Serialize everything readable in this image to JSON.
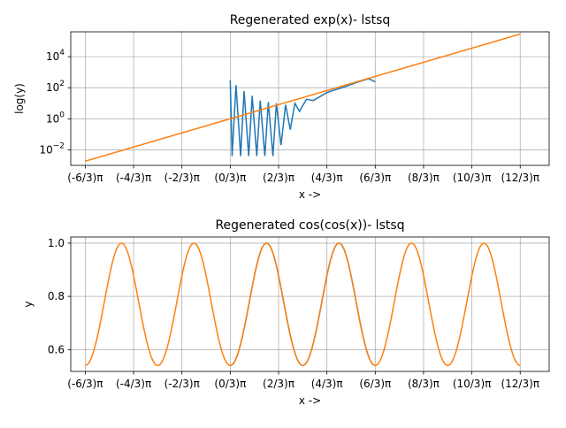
{
  "chart_data": [
    {
      "type": "line",
      "title": "Regenerated exp(x)- lstsq",
      "xlabel": "x ->",
      "ylabel": "log(y)",
      "yscale": "log",
      "grid": true,
      "xlim": [
        -6.912,
        13.822
      ],
      "ylim_exponent": [
        -3.0,
        5.6
      ],
      "xticks": [
        -6.2832,
        -4.1888,
        -2.0944,
        0.0,
        2.0944,
        4.1888,
        6.2832,
        8.3776,
        10.472,
        12.5664
      ],
      "xticklabels": [
        "(-6/3)π",
        "(-4/3)π",
        "(-2/3)π",
        "(0/3)π",
        "(2/3)π",
        "(4/3)π",
        "(6/3)π",
        "(8/3)π",
        "(10/3)π",
        "(12/3)π"
      ],
      "yticks": [
        0.01,
        1,
        100,
        10000
      ],
      "yticklabels_base": [
        "10",
        "10",
        "10",
        "10"
      ],
      "yticklabels_exp": [
        "−2",
        "0",
        "2",
        "4"
      ],
      "series": [
        {
          "color": "#1f77b4",
          "x_range": [
            0.0,
            6.2832
          ],
          "description_points": [
            [
              0.0,
              300
            ],
            [
              0.08,
              0.004
            ],
            [
              0.25,
              150
            ],
            [
              0.45,
              0.004
            ],
            [
              0.6,
              60
            ],
            [
              0.8,
              0.004
            ],
            [
              0.95,
              30
            ],
            [
              1.15,
              0.004
            ],
            [
              1.3,
              15
            ],
            [
              1.5,
              0.004
            ],
            [
              1.65,
              12
            ],
            [
              1.85,
              0.004
            ],
            [
              2.0,
              10
            ],
            [
              2.2,
              0.02
            ],
            [
              2.4,
              8
            ],
            [
              2.6,
              0.2
            ],
            [
              2.8,
              10
            ],
            [
              3.0,
              3
            ],
            [
              3.3,
              18
            ],
            [
              3.6,
              15
            ],
            [
              4.2,
              50
            ],
            [
              5.0,
              120
            ],
            [
              5.6,
              250
            ],
            [
              6.0,
              380
            ],
            [
              6.2832,
              240
            ]
          ]
        },
        {
          "color": "#ff7f0e",
          "function": "exp",
          "x_range": [
            -6.2832,
            12.5664
          ]
        }
      ]
    },
    {
      "type": "line",
      "title": "Regenerated cos(cos(x))- lstsq",
      "xlabel": "x ->",
      "ylabel": "y",
      "grid": true,
      "xlim": [
        -6.912,
        13.822
      ],
      "ylim": [
        0.518,
        1.023
      ],
      "xticks": [
        -6.2832,
        -4.1888,
        -2.0944,
        0.0,
        2.0944,
        4.1888,
        6.2832,
        8.3776,
        10.472,
        12.5664
      ],
      "xticklabels": [
        "(-6/3)π",
        "(-4/3)π",
        "(-2/3)π",
        "(0/3)π",
        "(2/3)π",
        "(4/3)π",
        "(6/3)π",
        "(8/3)π",
        "(10/3)π",
        "(12/3)π"
      ],
      "yticks": [
        0.6,
        0.8,
        1.0
      ],
      "yticklabels": [
        "0.6",
        "0.8",
        "1.0"
      ],
      "series": [
        {
          "color": "#1f77b4",
          "function": "cos(cos(x))",
          "x_range": [
            0.0,
            6.2832
          ]
        },
        {
          "color": "#ff7f0e",
          "function": "cos(cos(x))",
          "x_range": [
            -6.2832,
            12.5664
          ]
        }
      ]
    }
  ]
}
